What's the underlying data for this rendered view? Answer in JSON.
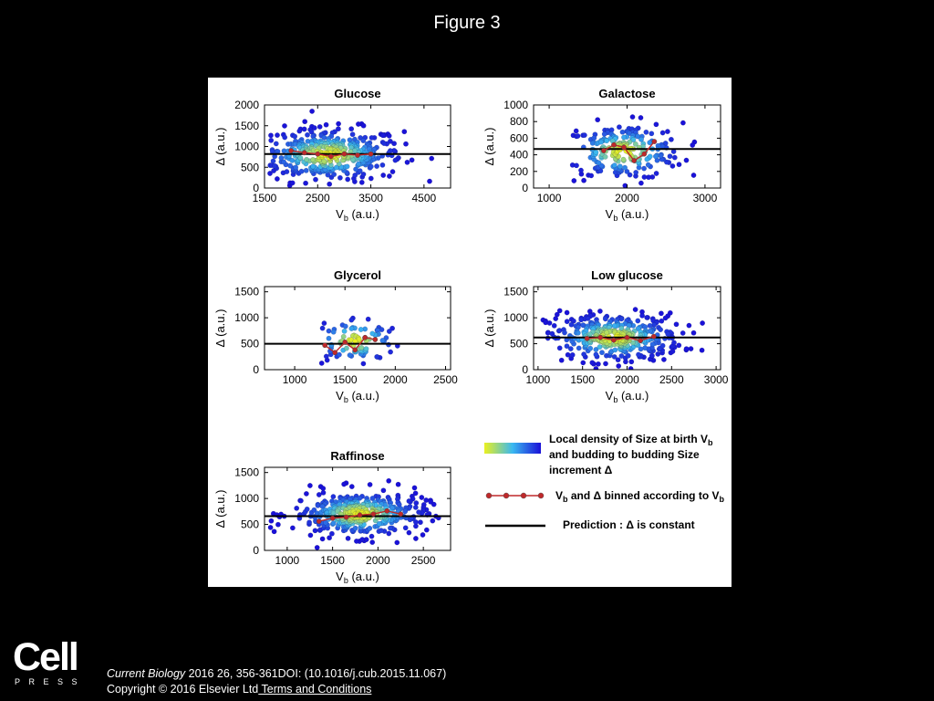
{
  "slide": {
    "title": "Figure 3",
    "logo": {
      "brand": "Cell",
      "sub": "PRESS"
    },
    "citation": {
      "journal": "Current Biology",
      "details": " 2016 26, 356-361DOI: (10.1016/j.cub.2015.11.067)",
      "copyright": "Copyright © 2016 Elsevier Ltd",
      "terms_link": " Terms and Conditions"
    }
  },
  "colors": {
    "density_low": "#1a10d8",
    "density_mid": "#3ab8f0",
    "density_high": "#eaf020",
    "binned": "#c0282a",
    "prediction": "#000000"
  },
  "chart_data": [
    {
      "type": "scatter",
      "title": "Glucose",
      "xlabel": "Vb (a.u.)",
      "ylabel": "Δ (a.u.)",
      "xlim": [
        1500,
        5000
      ],
      "ylim": [
        0,
        2000
      ],
      "xticks": [
        1500,
        2500,
        3500,
        4500
      ],
      "yticks": [
        0,
        500,
        1000,
        1500,
        2000
      ],
      "cloud": {
        "cx": 2700,
        "cy": 800,
        "sx": 700,
        "sy": 320,
        "n": 420,
        "xmin": 1600,
        "xmax": 4950
      },
      "prediction": 820,
      "binned": {
        "x": [
          2000,
          2250,
          2500,
          2750,
          3000,
          3250,
          3500
        ],
        "y": [
          900,
          850,
          820,
          760,
          820,
          790,
          820
        ]
      }
    },
    {
      "type": "scatter",
      "title": "Galactose",
      "xlabel": "Vb (a.u.)",
      "ylabel": "Δ (a.u.)",
      "xlim": [
        800,
        3200
      ],
      "ylim": [
        0,
        1000
      ],
      "xticks": [
        1000,
        2000,
        3000
      ],
      "yticks": [
        0,
        200,
        400,
        600,
        800,
        1000
      ],
      "cloud": {
        "cx": 1950,
        "cy": 440,
        "sx": 380,
        "sy": 170,
        "n": 230,
        "xmin": 1300,
        "xmax": 3000
      },
      "prediction": 470,
      "binned": {
        "x": [
          1700,
          1830,
          1960,
          2090,
          2220,
          2350
        ],
        "y": [
          450,
          520,
          490,
          330,
          410,
          560
        ]
      }
    },
    {
      "type": "scatter",
      "title": "Glycerol",
      "xlabel": "Vb (a.u.)",
      "ylabel": "Δ (a.u.)",
      "xlim": [
        700,
        2550
      ],
      "ylim": [
        0,
        1600
      ],
      "xticks": [
        1000,
        1500,
        2000,
        2500
      ],
      "yticks": [
        0,
        500,
        1000,
        1500
      ],
      "cloud": {
        "cx": 1600,
        "cy": 560,
        "sx": 230,
        "sy": 230,
        "n": 95,
        "xmin": 1250,
        "xmax": 2100
      },
      "prediction": 500,
      "binned": {
        "x": [
          1300,
          1400,
          1500,
          1600,
          1700,
          1800
        ],
        "y": [
          470,
          330,
          530,
          380,
          620,
          580
        ]
      }
    },
    {
      "type": "scatter",
      "title": "Low glucose",
      "xlabel": "Vb (a.u.)",
      "ylabel": "Δ (a.u.)",
      "xlim": [
        950,
        3050
      ],
      "ylim": [
        0,
        1600
      ],
      "xticks": [
        1000,
        1500,
        2000,
        2500,
        3000
      ],
      "yticks": [
        0,
        500,
        1000,
        1500
      ],
      "cloud": {
        "cx": 1850,
        "cy": 620,
        "sx": 380,
        "sy": 230,
        "n": 380,
        "xmin": 1050,
        "xmax": 3000
      },
      "prediction": 620,
      "binned": {
        "x": [
          1550,
          1700,
          1850,
          2000,
          2150,
          2300
        ],
        "y": [
          600,
          620,
          570,
          620,
          560,
          640
        ]
      }
    },
    {
      "type": "scatter",
      "title": "Raffinose",
      "xlabel": "Vb (a.u.)",
      "ylabel": "Δ (a.u.)",
      "xlim": [
        750,
        2800
      ],
      "ylim": [
        0,
        1600
      ],
      "xticks": [
        1000,
        1500,
        2000,
        2500
      ],
      "yticks": [
        0,
        500,
        1000,
        1500
      ],
      "cloud": {
        "cx": 1800,
        "cy": 700,
        "sx": 370,
        "sy": 220,
        "n": 400,
        "xmin": 800,
        "xmax": 2780
      },
      "prediction": 660,
      "binned": {
        "x": [
          1350,
          1500,
          1650,
          1800,
          1950,
          2100,
          2250
        ],
        "y": [
          560,
          620,
          640,
          680,
          700,
          760,
          700
        ]
      }
    }
  ],
  "legend": {
    "density": {
      "line1": "Local density of Size at birth V",
      "sub1": "b",
      "line2": "and budding to budding Size",
      "line3": "increment Δ"
    },
    "binned": {
      "pre": "V",
      "sub": "b",
      "mid": " and Δ binned according to V",
      "sub2": "b"
    },
    "prediction": "Prediction : Δ is constant"
  }
}
